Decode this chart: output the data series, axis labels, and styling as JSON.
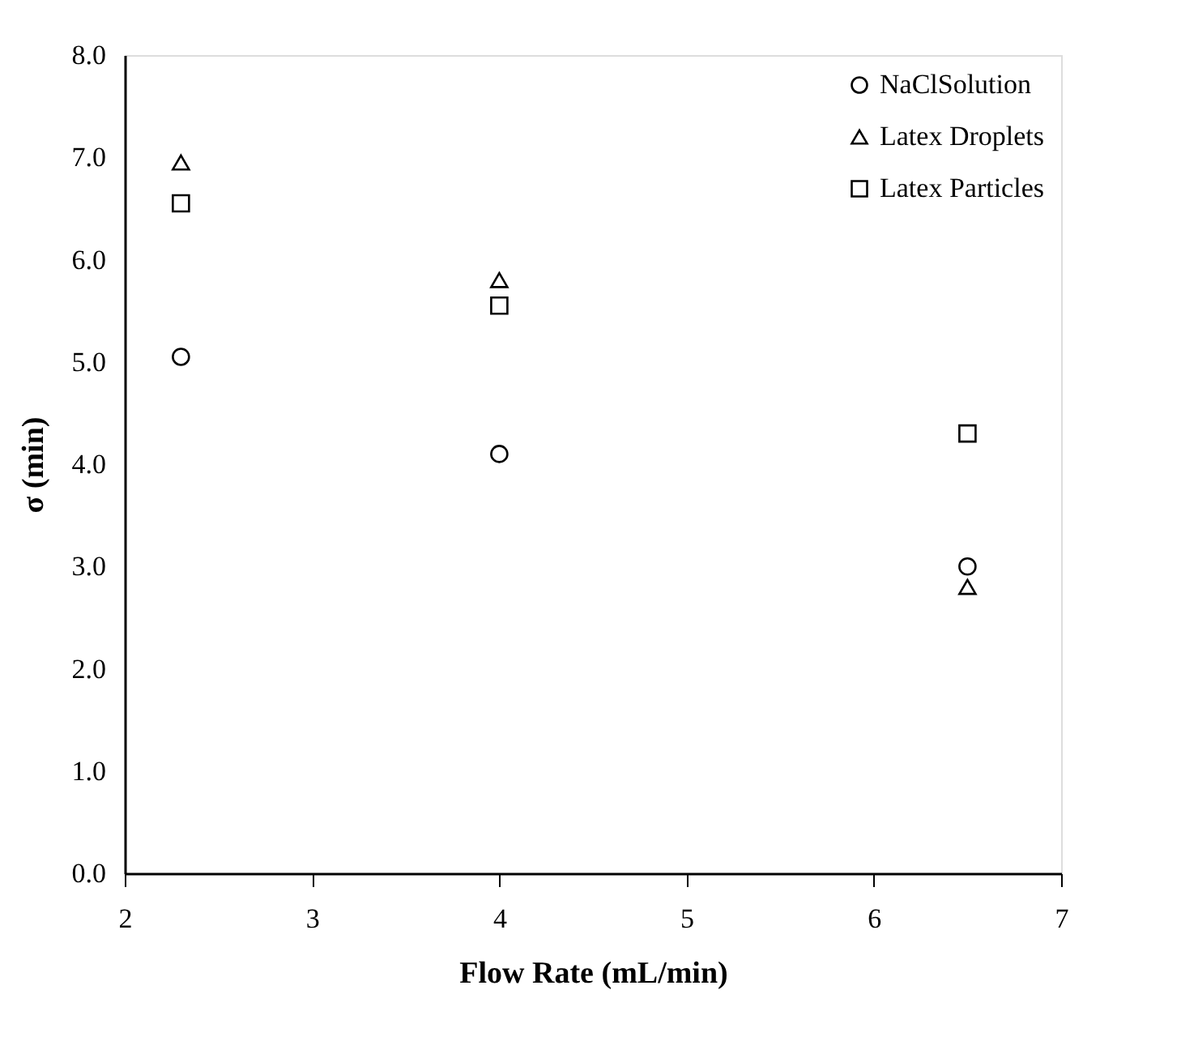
{
  "chart_data": {
    "type": "scatter",
    "xlabel": "Flow Rate (mL/min)",
    "ylabel": "σ (min)",
    "x": [
      2.3,
      4,
      6.5
    ],
    "series": [
      {
        "name": "NaClSolution",
        "color": "#000000",
        "marker": "circle",
        "values": [
          5.05,
          4.1,
          3.0
        ]
      },
      {
        "name": "Latex Droplets",
        "color": "#000000",
        "marker": "triangle",
        "values": [
          6.95,
          5.8,
          2.8
        ]
      },
      {
        "name": "Latex Particles",
        "color": "#000000",
        "marker": "square",
        "values": [
          6.55,
          5.55,
          4.3
        ]
      }
    ],
    "xlim": [
      2,
      7
    ],
    "xticks": [
      2,
      3,
      4,
      5,
      6,
      7
    ],
    "ylim": [
      0,
      8
    ],
    "yticks": [
      {
        "value": 0,
        "label": "0.0"
      },
      {
        "value": 1,
        "label": "1.0"
      },
      {
        "value": 2,
        "label": "2.0"
      },
      {
        "value": 3,
        "label": "3.0"
      },
      {
        "value": 4,
        "label": "4.0"
      },
      {
        "value": 5,
        "label": "5.0"
      },
      {
        "value": 6,
        "label": "6.0"
      },
      {
        "value": 7,
        "label": "7.0"
      },
      {
        "value": 8,
        "label": "8.0"
      }
    ],
    "grid": false,
    "legend": "top right"
  }
}
